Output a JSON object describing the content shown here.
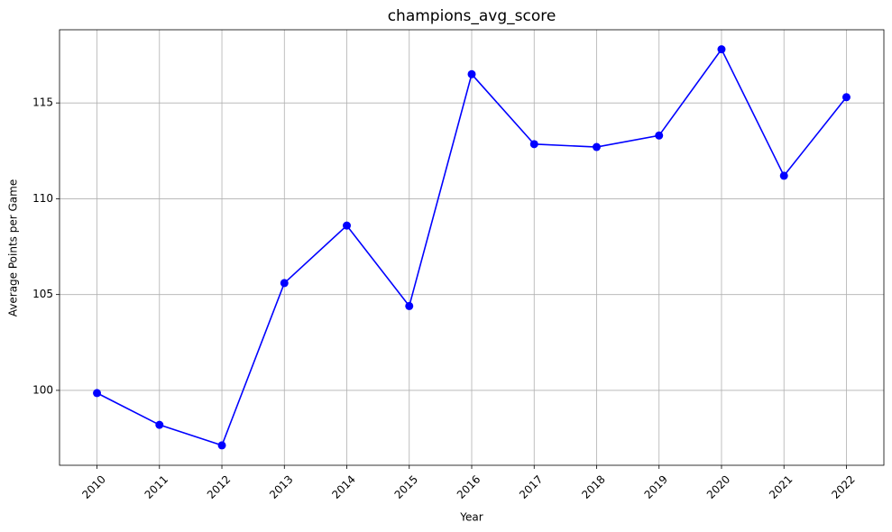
{
  "chart_data": {
    "type": "line",
    "title": "champions_avg_score",
    "xlabel": "Year",
    "ylabel": "Average Points per Game",
    "x": [
      2010,
      2011,
      2012,
      2013,
      2014,
      2015,
      2016,
      2017,
      2018,
      2019,
      2020,
      2021,
      2022
    ],
    "series": [
      {
        "name": "champions_avg_score",
        "color": "#0000ff",
        "values": [
          99.86,
          98.2,
          97.13,
          105.6,
          108.6,
          104.4,
          116.5,
          112.85,
          112.7,
          113.3,
          117.8,
          111.2,
          115.3
        ]
      }
    ],
    "xlim": [
      2009.4,
      2022.6
    ],
    "xticks": [
      2010,
      2011,
      2012,
      2013,
      2014,
      2015,
      2016,
      2017,
      2018,
      2019,
      2020,
      2021,
      2022
    ],
    "ylim": [
      96.09,
      118.82
    ],
    "yticks": [
      100,
      105,
      110,
      115
    ],
    "grid": true,
    "markers": true
  }
}
